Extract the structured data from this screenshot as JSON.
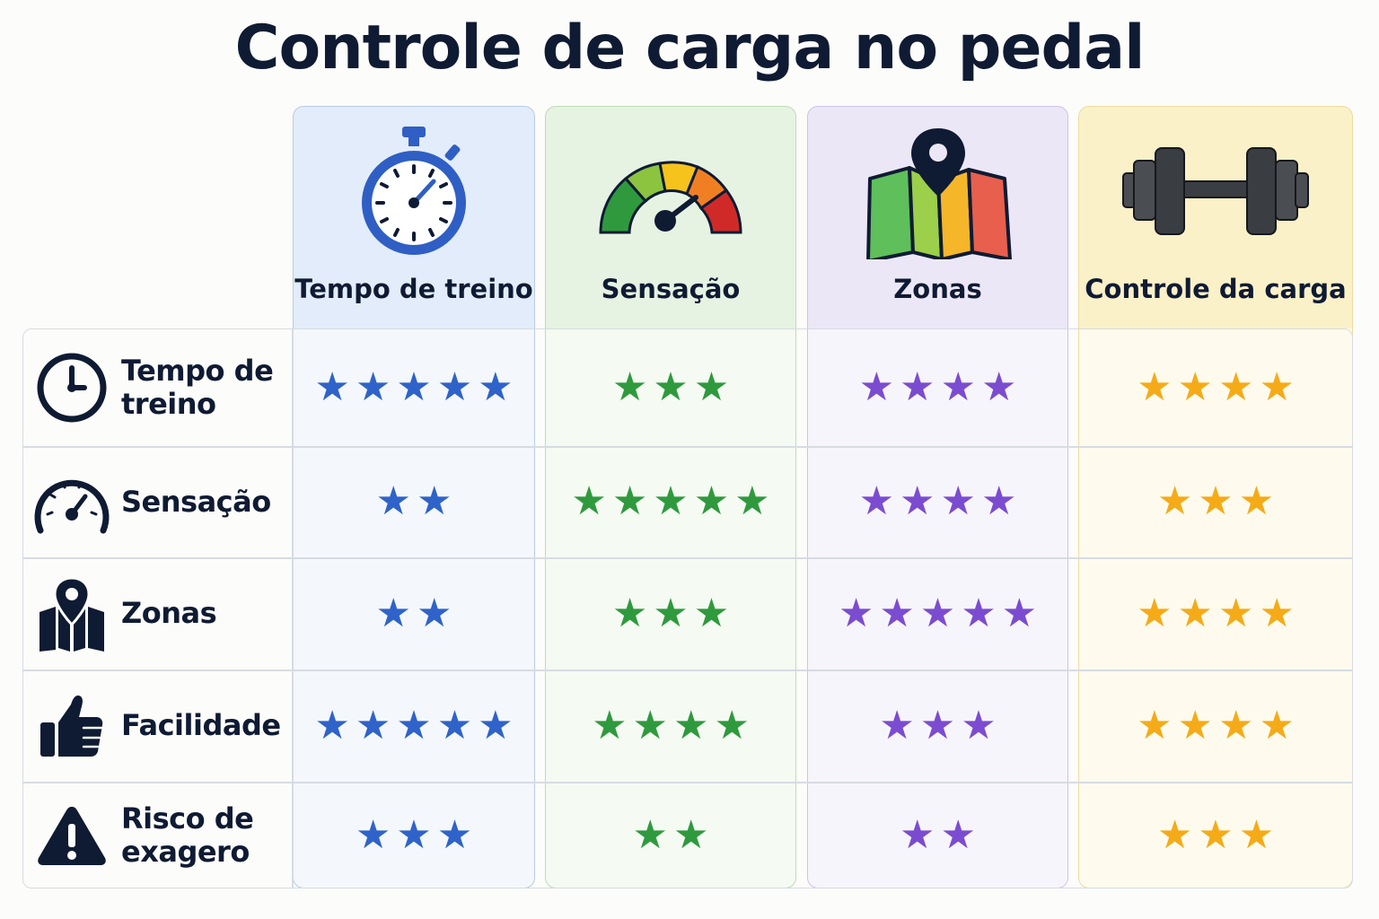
{
  "title": "Controle de carga no pedal",
  "columns": [
    {
      "key": "tempo",
      "label": "Tempo de treino",
      "icon": "stopwatch-icon",
      "color": "#2f63c9"
    },
    {
      "key": "sensacao",
      "label": "Sensação",
      "icon": "gauge-icon",
      "color": "#2f9a3d"
    },
    {
      "key": "zonas",
      "label": "Zonas",
      "icon": "zone-map-icon",
      "color": "#7b4cd0"
    },
    {
      "key": "carga",
      "label": "Controle da carga",
      "icon": "dumbbell-icon",
      "color": "#f5ab18"
    }
  ],
  "rows": [
    {
      "label_line1": "Tempo de",
      "label_line2": "treino",
      "icon": "clock-icon",
      "ratings": [
        5,
        3,
        4,
        4
      ]
    },
    {
      "label_line1": "Sensação",
      "label_line2": "",
      "icon": "gauge-icon",
      "ratings": [
        2,
        5,
        4,
        3
      ]
    },
    {
      "label_line1": "Zonas",
      "label_line2": "",
      "icon": "map-pin-icon",
      "ratings": [
        2,
        3,
        5,
        4
      ]
    },
    {
      "label_line1": "Facilidade",
      "label_line2": "",
      "icon": "thumbs-up-icon",
      "ratings": [
        5,
        4,
        3,
        4
      ]
    },
    {
      "label_line1": "Risco de",
      "label_line2": "exagero",
      "icon": "warning-icon",
      "ratings": [
        3,
        2,
        2,
        3
      ]
    }
  ],
  "star_glyph": "★"
}
